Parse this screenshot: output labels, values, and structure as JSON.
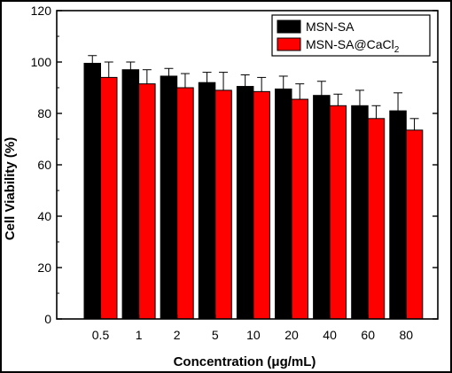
{
  "chart_data": {
    "type": "bar",
    "xlabel": "Concentration (μg/mL)",
    "ylabel": "Cell Viability (%)",
    "ylim": [
      0,
      120
    ],
    "yticks": [
      0,
      20,
      40,
      60,
      80,
      100,
      120
    ],
    "categories": [
      "0.5",
      "1",
      "2",
      "5",
      "10",
      "20",
      "40",
      "60",
      "80"
    ],
    "series": [
      {
        "name": "MSN-SA",
        "legend_main": "MSN-SA",
        "legend_sub": "",
        "color": "#000000",
        "values": [
          99.5,
          97,
          94.5,
          92,
          90.5,
          89.5,
          87,
          83,
          81
        ],
        "errors": [
          3,
          3,
          3,
          4,
          4.5,
          5,
          5.5,
          6,
          7
        ]
      },
      {
        "name": "MSN-SA@CaCl2",
        "legend_main": "MSN-SA@CaCl",
        "legend_sub": "2",
        "color": "#ff0000",
        "values": [
          94,
          91.5,
          90,
          89,
          88.5,
          85.5,
          83,
          78,
          73.5
        ],
        "errors": [
          6,
          5.5,
          5.5,
          7,
          5.5,
          6,
          4.5,
          5,
          4.5
        ]
      }
    ],
    "legend_position": "top-right",
    "grid": false
  }
}
